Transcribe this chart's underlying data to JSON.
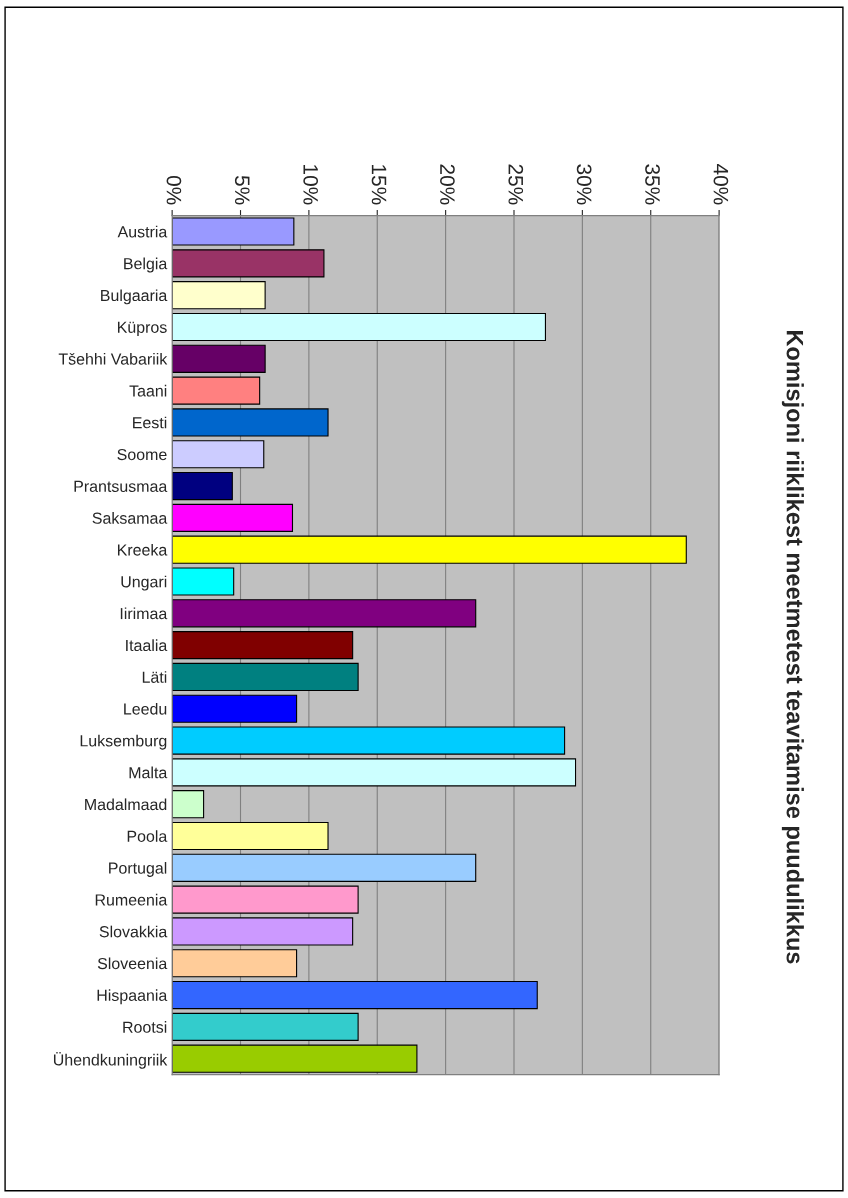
{
  "chart_data": {
    "type": "bar",
    "orientation": "horizontal",
    "title": "Komisjoni riiklikest meetmetest teavitamise puudulikkus",
    "categories": [
      "Austria",
      "Belgia",
      "Bulgaaria",
      "Küpros",
      "Tšehhi Vabariik",
      "Taani",
      "Eesti",
      "Soome",
      "Prantsusmaa",
      "Saksamaa",
      "Kreeka",
      "Ungari",
      "Iirimaa",
      "Itaalia",
      "Läti",
      "Leedu",
      "Luksemburg",
      "Malta",
      "Madalmaad",
      "Poola",
      "Portugal",
      "Rumeenia",
      "Slovakkia",
      "Sloveenia",
      "Hispaania",
      "Rootsi",
      "Ühendkuningriik"
    ],
    "values": [
      8.9,
      11.1,
      6.8,
      27.3,
      6.8,
      6.4,
      11.4,
      6.7,
      4.4,
      8.8,
      37.6,
      4.5,
      22.2,
      13.2,
      13.6,
      9.1,
      28.7,
      29.5,
      2.3,
      11.4,
      22.2,
      13.6,
      13.2,
      9.1,
      26.7,
      13.6,
      17.9
    ],
    "colors": [
      "#9999ff",
      "#993366",
      "#ffffcc",
      "#ccffff",
      "#660066",
      "#ff8080",
      "#0066cc",
      "#ccccff",
      "#000080",
      "#ff00ff",
      "#ffff00",
      "#00ffff",
      "#800080",
      "#800000",
      "#008080",
      "#0000ff",
      "#00ccff",
      "#ccffff",
      "#ccffcc",
      "#ffff99",
      "#99ccff",
      "#ff99cc",
      "#cc99ff",
      "#ffcc99",
      "#3366ff",
      "#33cccc",
      "#99cc00"
    ],
    "xlim": [
      0,
      40
    ],
    "xticks": [
      {
        "value": 0,
        "label": "0%"
      },
      {
        "value": 5,
        "label": "5%"
      },
      {
        "value": 10,
        "label": "10%"
      },
      {
        "value": 15,
        "label": "15%"
      },
      {
        "value": 20,
        "label": "20%"
      },
      {
        "value": 25,
        "label": "25%"
      },
      {
        "value": 30,
        "label": "30%"
      },
      {
        "value": 35,
        "label": "35%"
      },
      {
        "value": 40,
        "label": "40%"
      }
    ],
    "grid": "x",
    "legend": false
  }
}
